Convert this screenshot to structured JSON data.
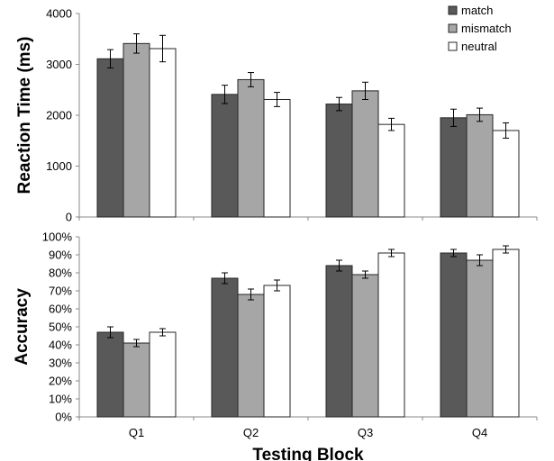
{
  "colors": {
    "match": "#595959",
    "mismatch": "#a6a6a6",
    "neutral": "#ffffff",
    "outline": "#262626",
    "axis": "#888888"
  },
  "chart_data": [
    {
      "type": "bar",
      "ylabel": "Reaction Time (ms)",
      "ylim": [
        0,
        4000
      ],
      "yticks": [
        "0",
        "1000",
        "2000",
        "3000",
        "4000"
      ],
      "yticks_values": [
        0,
        1000,
        2000,
        3000,
        4000
      ],
      "categories": [
        "Q1",
        "Q2",
        "Q3",
        "Q4"
      ],
      "show_category_labels": false,
      "grid": false,
      "legend": {
        "placement": "top-right",
        "entries": [
          "match",
          "mismatch",
          "neutral"
        ]
      },
      "series": [
        {
          "name": "match",
          "values": [
            3110,
            2410,
            2220,
            1950
          ],
          "errors": [
            180,
            180,
            130,
            170
          ]
        },
        {
          "name": "mismatch",
          "values": [
            3410,
            2700,
            2480,
            2010
          ],
          "errors": [
            190,
            140,
            170,
            130
          ]
        },
        {
          "name": "neutral",
          "values": [
            3310,
            2310,
            1820,
            1700
          ],
          "errors": [
            260,
            140,
            120,
            150
          ]
        }
      ]
    },
    {
      "type": "bar",
      "ylabel": "Accuracy",
      "ylim": [
        0,
        100
      ],
      "yticks": [
        "0%",
        "10%",
        "20%",
        "30%",
        "40%",
        "50%",
        "60%",
        "70%",
        "80%",
        "90%",
        "100%"
      ],
      "yticks_values": [
        0,
        10,
        20,
        30,
        40,
        50,
        60,
        70,
        80,
        90,
        100
      ],
      "categories": [
        "Q1",
        "Q2",
        "Q3",
        "Q4"
      ],
      "show_category_labels": true,
      "xlabel": "Testing Block",
      "grid": false,
      "series": [
        {
          "name": "match",
          "values": [
            47,
            77,
            84,
            91
          ],
          "errors": [
            3,
            3,
            3,
            2
          ]
        },
        {
          "name": "mismatch",
          "values": [
            41,
            68,
            79,
            87
          ],
          "errors": [
            2,
            3,
            2,
            3
          ]
        },
        {
          "name": "neutral",
          "values": [
            47,
            73,
            91,
            93
          ],
          "errors": [
            2,
            3,
            2,
            2
          ]
        }
      ]
    }
  ]
}
